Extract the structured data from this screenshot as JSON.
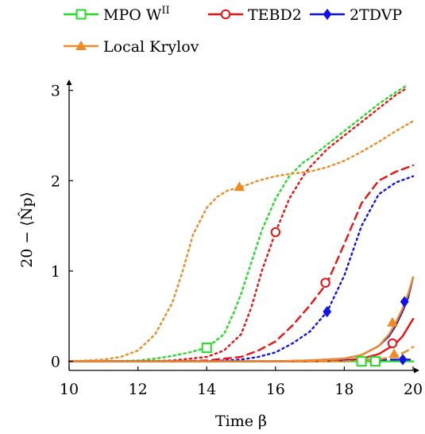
{
  "chart_data": {
    "type": "line",
    "xlabel": "Time β",
    "ylabel": "20 − ⟨N̂p⟩",
    "xlim": [
      10,
      20
    ],
    "ylim": [
      -0.1,
      3.05
    ],
    "x_ticks": [
      10,
      12,
      14,
      16,
      18,
      20
    ],
    "y_ticks": [
      0,
      1,
      2,
      3
    ],
    "x_tick_labels": [
      "10",
      "12",
      "14",
      "16",
      "18",
      "20"
    ],
    "y_tick_labels": [
      "0",
      "1",
      "2",
      "3"
    ],
    "grid": false,
    "legend_position": "top",
    "legend": [
      {
        "label_main": "MPO W",
        "label_sup": "II",
        "color": "#22dd22",
        "marker": "square"
      },
      {
        "label_main": "TEBD2",
        "label_sup": "",
        "color": "#ee1111",
        "marker": "circle"
      },
      {
        "label_main": "2TDVP",
        "label_sup": "",
        "color": "#1111ee",
        "marker": "diamond"
      },
      {
        "label_main": "Local Krylov",
        "label_sup": "",
        "color": "#f08a24",
        "marker": "triangle"
      }
    ],
    "series": [
      {
        "method": "MPO W^II",
        "style": "dotted",
        "color": "#22dd22",
        "x": [
          10,
          11,
          12,
          12.5,
          13,
          13.5,
          14,
          14.5,
          14.8,
          15,
          15.3,
          15.6,
          16,
          16.4,
          16.8,
          17,
          17.5,
          18,
          18.5,
          19,
          19.5,
          19.8
        ],
        "y": [
          0,
          0,
          0.01,
          0.03,
          0.06,
          0.1,
          0.15,
          0.3,
          0.55,
          0.75,
          1.1,
          1.45,
          1.8,
          2.05,
          2.2,
          2.25,
          2.4,
          2.55,
          2.7,
          2.85,
          2.98,
          3.05
        ],
        "markers": [
          [
            14,
            0.15
          ]
        ]
      },
      {
        "method": "MPO W^II",
        "style": "solid",
        "color": "#22dd22",
        "x": [
          10,
          14,
          16,
          17,
          18,
          18.5,
          19,
          19.5,
          20
        ],
        "y": [
          0,
          0,
          0,
          0,
          0,
          0,
          0,
          0,
          0
        ],
        "markers": [
          [
            18.5,
            0
          ],
          [
            18.9,
            0
          ]
        ]
      },
      {
        "method": "TEBD2",
        "style": "dotted",
        "color": "#ee1111",
        "x": [
          10,
          12,
          13,
          14,
          14.5,
          15,
          15.3,
          15.6,
          16,
          16.4,
          16.8,
          17,
          17.5,
          18,
          18.5,
          19,
          19.5,
          19.8
        ],
        "y": [
          0,
          0,
          0.01,
          0.05,
          0.12,
          0.3,
          0.6,
          1.0,
          1.43,
          1.8,
          2.05,
          2.15,
          2.35,
          2.5,
          2.65,
          2.8,
          2.95,
          3.02
        ],
        "markers": [
          [
            16,
            1.43
          ]
        ]
      },
      {
        "method": "TEBD2",
        "style": "dashed",
        "color": "#ee1111",
        "x": [
          10,
          13,
          14,
          15,
          15.5,
          16,
          16.5,
          17,
          17.5,
          18,
          18.5,
          19,
          19.5,
          20
        ],
        "y": [
          0,
          0,
          0.01,
          0.05,
          0.12,
          0.22,
          0.4,
          0.62,
          0.87,
          1.3,
          1.75,
          2.0,
          2.1,
          2.17
        ],
        "markers": [
          [
            17.45,
            0.87
          ]
        ]
      },
      {
        "method": "TEBD2",
        "style": "solid",
        "color": "#ee1111",
        "x": [
          10,
          15,
          16,
          17,
          18,
          18.5,
          19,
          19.3,
          19.5,
          19.7,
          20
        ],
        "y": [
          0,
          0,
          0,
          0,
          0.01,
          0.03,
          0.08,
          0.15,
          0.2,
          0.28,
          0.47
        ],
        "markers": [
          [
            19.4,
            0.2
          ]
        ]
      },
      {
        "method": "2TDVP",
        "style": "dotted",
        "color": "#1111ee",
        "x": [
          10,
          14,
          15,
          15.5,
          16,
          16.5,
          17,
          17.5,
          18,
          18.5,
          19,
          19.5,
          20
        ],
        "y": [
          0,
          0,
          0.02,
          0.05,
          0.1,
          0.2,
          0.33,
          0.55,
          0.95,
          1.5,
          1.85,
          1.98,
          2.05
        ],
        "markers": [
          [
            17.5,
            0.55
          ]
        ]
      },
      {
        "method": "2TDVP",
        "style": "solid",
        "color": "#1111ee",
        "x": [
          10,
          16,
          17,
          18,
          18.5,
          19,
          19.3,
          19.5,
          19.7,
          19.85,
          20
        ],
        "y": [
          0,
          0,
          0.01,
          0.03,
          0.07,
          0.17,
          0.28,
          0.4,
          0.56,
          0.7,
          0.93
        ],
        "markers": [
          [
            19.75,
            0.66
          ]
        ]
      },
      {
        "method": "2TDVP",
        "style": "dashed",
        "color": "#1111ee",
        "x": [
          10,
          16,
          18,
          19,
          19.5,
          20
        ],
        "y": [
          0,
          0,
          0.01,
          0.02,
          0.02,
          0.02
        ],
        "markers": [
          [
            19.7,
            0.02
          ]
        ]
      },
      {
        "method": "Local Krylov",
        "style": "dotted",
        "color": "#f08a24",
        "x": [
          10,
          11,
          11.5,
          12,
          12.5,
          13,
          13.3,
          13.6,
          14,
          14.3,
          14.6,
          15,
          15.5,
          16,
          16.5,
          17,
          17.5,
          18,
          18.5,
          19,
          19.5,
          20
        ],
        "y": [
          0,
          0.02,
          0.05,
          0.12,
          0.3,
          0.65,
          1.0,
          1.4,
          1.7,
          1.82,
          1.89,
          1.93,
          2.0,
          2.05,
          2.08,
          2.1,
          2.15,
          2.22,
          2.32,
          2.43,
          2.55,
          2.66
        ],
        "markers": [
          [
            14.95,
            1.93
          ]
        ]
      },
      {
        "method": "Local Krylov",
        "style": "solid",
        "color": "#f08a24",
        "x": [
          10,
          16,
          17,
          18,
          18.5,
          19,
          19.3,
          19.5,
          19.7,
          19.85,
          20
        ],
        "y": [
          0,
          0,
          0.01,
          0.03,
          0.07,
          0.17,
          0.3,
          0.43,
          0.59,
          0.74,
          0.93
        ],
        "markers": [
          [
            19.4,
            0.43
          ]
        ]
      },
      {
        "method": "Local Krylov",
        "style": "dashed",
        "color": "#f08a24",
        "x": [
          10,
          18,
          19,
          19.5,
          19.8,
          20
        ],
        "y": [
          0,
          0,
          0.02,
          0.06,
          0.11,
          0.16
        ],
        "markers": [
          [
            19.45,
            0.08
          ]
        ]
      }
    ]
  }
}
